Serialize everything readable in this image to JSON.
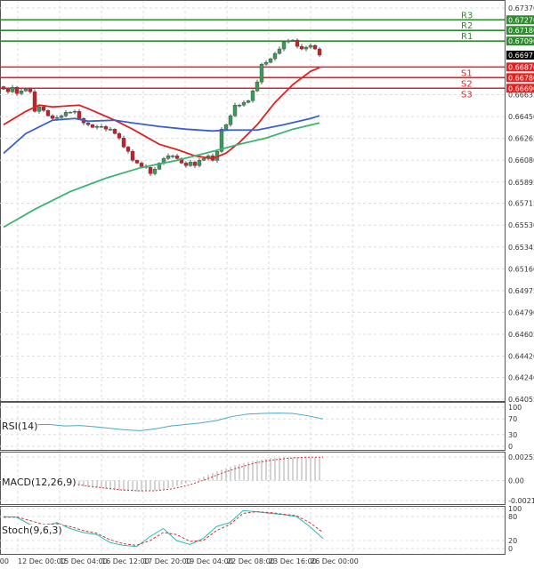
{
  "chart_data": [
    {
      "type": "candlestick",
      "panel": "price",
      "y_ticks": [
        "0.67370",
        "0.66635",
        "0.66450",
        "0.66265",
        "0.66080",
        "0.65895",
        "0.65715",
        "0.65530",
        "0.65345",
        "0.65160",
        "0.64975",
        "0.64790",
        "0.64605",
        "0.64420",
        "0.64240",
        "0.64055"
      ],
      "ylim": [
        0.64055,
        0.6737
      ],
      "x_ticks": [
        "6:00",
        "12 Dec 00:00",
        "15 Dec 04:00",
        "16 Dec 12:00",
        "17 Dec 20:00",
        "19 Dec 04:00",
        "22 Dec 08:00",
        "23 Dec 16:00",
        "26 Dec 00:00"
      ],
      "current_price": "0.66971",
      "closes": [
        0.66683,
        0.6666,
        0.66698,
        0.66645,
        0.66668,
        0.66683,
        0.6666,
        0.66494,
        0.66532,
        0.66502,
        0.66457,
        0.66434,
        0.66441,
        0.66457,
        0.66487,
        0.66487,
        0.66494,
        0.66434,
        0.66396,
        0.66381,
        0.66358,
        0.66366,
        0.66366,
        0.66343,
        0.66343,
        0.66306,
        0.66268,
        0.66192,
        0.66155,
        0.66079,
        0.66056,
        0.66026,
        0.66019,
        0.65966,
        0.66004,
        0.66056,
        0.66094,
        0.66117,
        0.66117,
        0.66094,
        0.66056,
        0.66034,
        0.66064,
        0.66034,
        0.66079,
        0.66094,
        0.66117,
        0.66079,
        0.66155,
        0.66343,
        0.66381,
        0.66457,
        0.66547,
        0.66547,
        0.6657,
        0.66585,
        0.66668,
        0.66743,
        0.66894,
        0.66909,
        0.6694,
        0.66985,
        0.67023,
        0.67083,
        0.67091,
        0.67098,
        0.67045,
        0.67023,
        0.67038,
        0.67053,
        0.67023,
        0.66971
      ],
      "moving_averages": [
        {
          "color": "#e02020",
          "points": [
            [
              0,
              0.66381
            ],
            [
              5,
              0.66494
            ],
            [
              8,
              0.66547
            ],
            [
              11,
              0.66532
            ],
            [
              17,
              0.66547
            ],
            [
              19,
              0.66517
            ],
            [
              25,
              0.66419
            ],
            [
              29,
              0.66343
            ],
            [
              35,
              0.66215
            ],
            [
              39,
              0.6617
            ],
            [
              43,
              0.66117
            ],
            [
              47,
              0.66094
            ],
            [
              50,
              0.6614
            ],
            [
              53,
              0.6623
            ],
            [
              57,
              0.66381
            ],
            [
              61,
              0.6657
            ],
            [
              65,
              0.66721
            ],
            [
              69,
              0.66834
            ],
            [
              71,
              0.66864
            ]
          ]
        },
        {
          "color": "#3a5fcd",
          "points": [
            [
              0,
              0.66139
            ],
            [
              5,
              0.66306
            ],
            [
              11,
              0.66419
            ],
            [
              16,
              0.66434
            ],
            [
              19,
              0.66411
            ],
            [
              25,
              0.66419
            ],
            [
              29,
              0.66396
            ],
            [
              35,
              0.66366
            ],
            [
              41,
              0.66343
            ],
            [
              47,
              0.66328
            ],
            [
              51,
              0.66336
            ],
            [
              57,
              0.66336
            ],
            [
              63,
              0.66381
            ],
            [
              69,
              0.66434
            ],
            [
              71,
              0.66457
            ]
          ]
        },
        {
          "color": "#3cb371",
          "points": [
            [
              0,
              0.65513
            ],
            [
              7,
              0.65664
            ],
            [
              15,
              0.65815
            ],
            [
              23,
              0.65928
            ],
            [
              31,
              0.66019
            ],
            [
              39,
              0.66079
            ],
            [
              47,
              0.66155
            ],
            [
              53,
              0.66215
            ],
            [
              59,
              0.66268
            ],
            [
              65,
              0.66343
            ],
            [
              71,
              0.66396
            ]
          ]
        }
      ],
      "levels": [
        {
          "name": "R3",
          "value": "0.67270",
          "color": "#2e8b2e"
        },
        {
          "name": "R2",
          "value": "0.67180",
          "color": "#2e8b2e"
        },
        {
          "name": "R1",
          "value": "0.67090",
          "color": "#2e8b2e"
        },
        {
          "name": "S1",
          "value": "0.66870",
          "color": "#dd2222"
        },
        {
          "name": "S2",
          "value": "0.66780",
          "color": "#dd2222"
        },
        {
          "name": "S3",
          "value": "0.66690",
          "color": "#dd2222"
        }
      ]
    },
    {
      "type": "line",
      "panel": "rsi",
      "title": "RSI(14)",
      "y_ticks": [
        "100",
        "70",
        "30",
        "0"
      ],
      "ylim": [
        0,
        100
      ],
      "values": [
        58,
        57,
        55,
        56,
        52,
        53,
        50,
        46,
        42,
        40,
        45,
        52,
        56,
        60,
        66,
        76,
        82,
        84,
        85,
        84,
        78,
        70
      ]
    },
    {
      "type": "bar",
      "panel": "macd",
      "title": "MACD(12,26,9)",
      "y_ticks": [
        "0.002524",
        "0.00",
        "-0.00215"
      ],
      "ylim": [
        -0.00215,
        0.002524
      ],
      "histogram": [
        0.0003,
        0.0002,
        0.0001,
        -0.0002,
        -0.0005,
        -0.0007,
        -0.0009,
        -0.0011,
        -0.0012,
        -0.0011,
        -0.0008,
        -0.0003,
        0.0004,
        0.0011,
        0.0017,
        0.0021,
        0.0024,
        0.0025,
        0.0025,
        0.0024
      ],
      "signal": [
        0.0004,
        0.0003,
        0.0002,
        0.0,
        -0.0003,
        -0.0006,
        -0.0008,
        -0.001,
        -0.0011,
        -0.0011,
        -0.0009,
        -0.0005,
        0.0001,
        0.0008,
        0.0014,
        0.0019,
        0.0022,
        0.0024,
        0.0025,
        0.0025
      ]
    },
    {
      "type": "line",
      "panel": "stoch",
      "title": "Stoch(9,6,3)",
      "y_ticks": [
        "100",
        "80",
        "20",
        "0"
      ],
      "ylim": [
        0,
        100
      ],
      "main": [
        80,
        78,
        60,
        55,
        65,
        50,
        40,
        35,
        15,
        8,
        5,
        30,
        50,
        20,
        10,
        25,
        55,
        65,
        95,
        92,
        88,
        85,
        80,
        55,
        25
      ],
      "signal": [
        78,
        79,
        70,
        60,
        62,
        55,
        45,
        38,
        22,
        12,
        8,
        20,
        40,
        35,
        18,
        20,
        45,
        60,
        88,
        92,
        90,
        86,
        82,
        65,
        40
      ]
    }
  ]
}
